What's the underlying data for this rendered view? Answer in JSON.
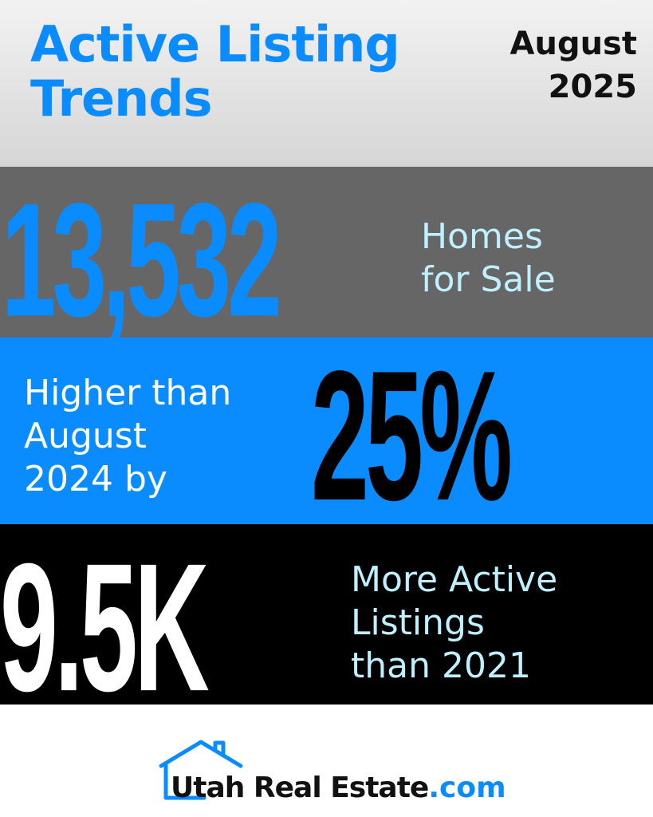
{
  "header": {
    "title_line1": "Active Listing",
    "title_line2": "Trends",
    "month": "August",
    "year": "2025"
  },
  "stats": {
    "homes_value": "13,532",
    "homes_caption_line1": "Homes",
    "homes_caption_line2": "for Sale",
    "change_caption_line1": "Higher than",
    "change_caption_line2": "August",
    "change_caption_line3": "2024 by",
    "change_value": "25%",
    "more_value": "9.5K",
    "more_caption_line1": "More Active",
    "more_caption_line2": "Listings",
    "more_caption_line3": "than 2021"
  },
  "logo": {
    "name": "Utah Real Estate",
    "tld": ".com",
    "icon": "house-outline-icon"
  },
  "colors": {
    "accent_blue": "#0a8cff",
    "light_cyan": "#bff0ff",
    "gray_band": "#666666",
    "black_band": "#000000"
  }
}
